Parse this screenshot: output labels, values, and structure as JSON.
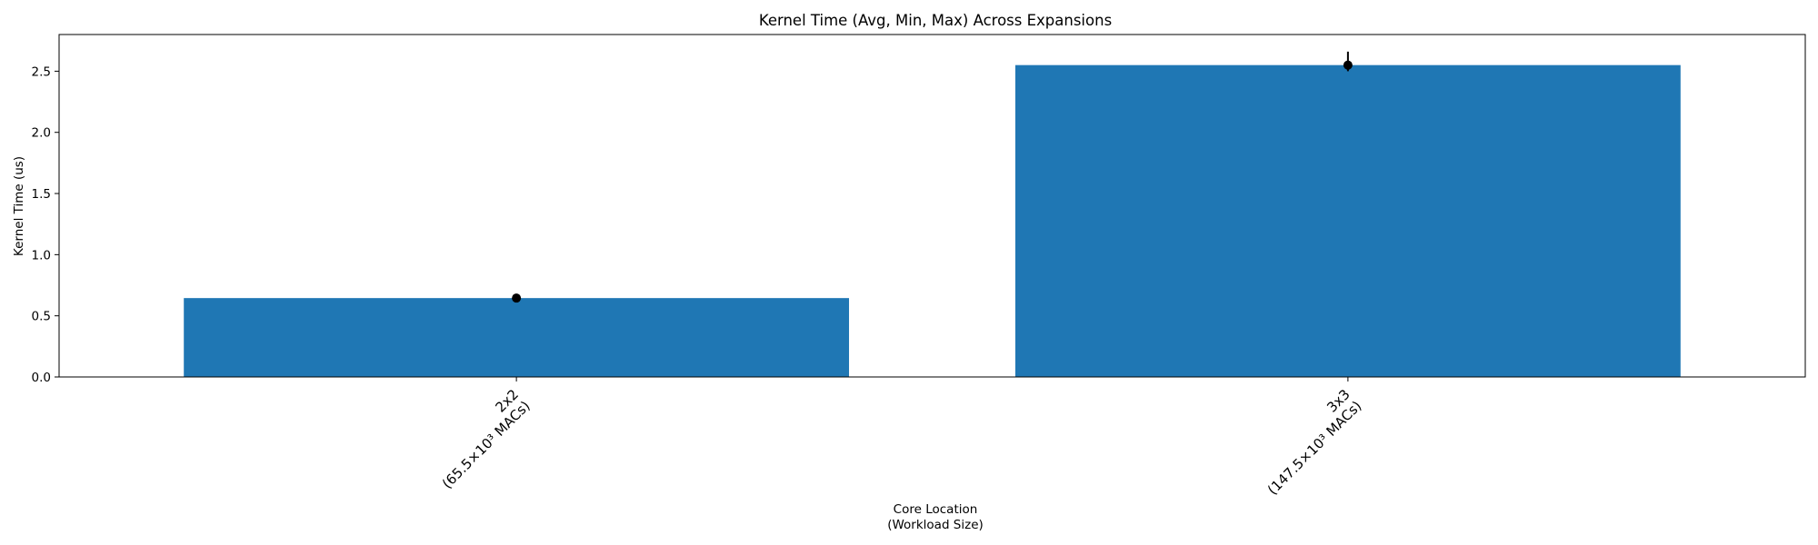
{
  "chart_data": {
    "type": "bar",
    "title": "Kernel Time (Avg, Min, Max) Across Expansions",
    "xlabel_lines": [
      "Core Location",
      "(Workload Size)"
    ],
    "ylabel": "Kernel Time (us)",
    "ylim": [
      0,
      2.8
    ],
    "yticks": [
      0.0,
      0.5,
      1.0,
      1.5,
      2.0,
      2.5
    ],
    "ytick_labels": [
      "0.0",
      "0.5",
      "1.0",
      "1.5",
      "2.0",
      "2.5"
    ],
    "grid": false,
    "bar_color": "#1f77b4",
    "marker_color": "#000000",
    "categories": [
      {
        "line1": "2x2",
        "line2": "(65.5×10³ MACs)",
        "avg": 0.645,
        "min": 0.635,
        "max": 0.655
      },
      {
        "line1": "3x3",
        "line2": "(147.5×10³ MACs)",
        "avg": 2.55,
        "min": 2.5,
        "max": 2.66
      }
    ]
  }
}
